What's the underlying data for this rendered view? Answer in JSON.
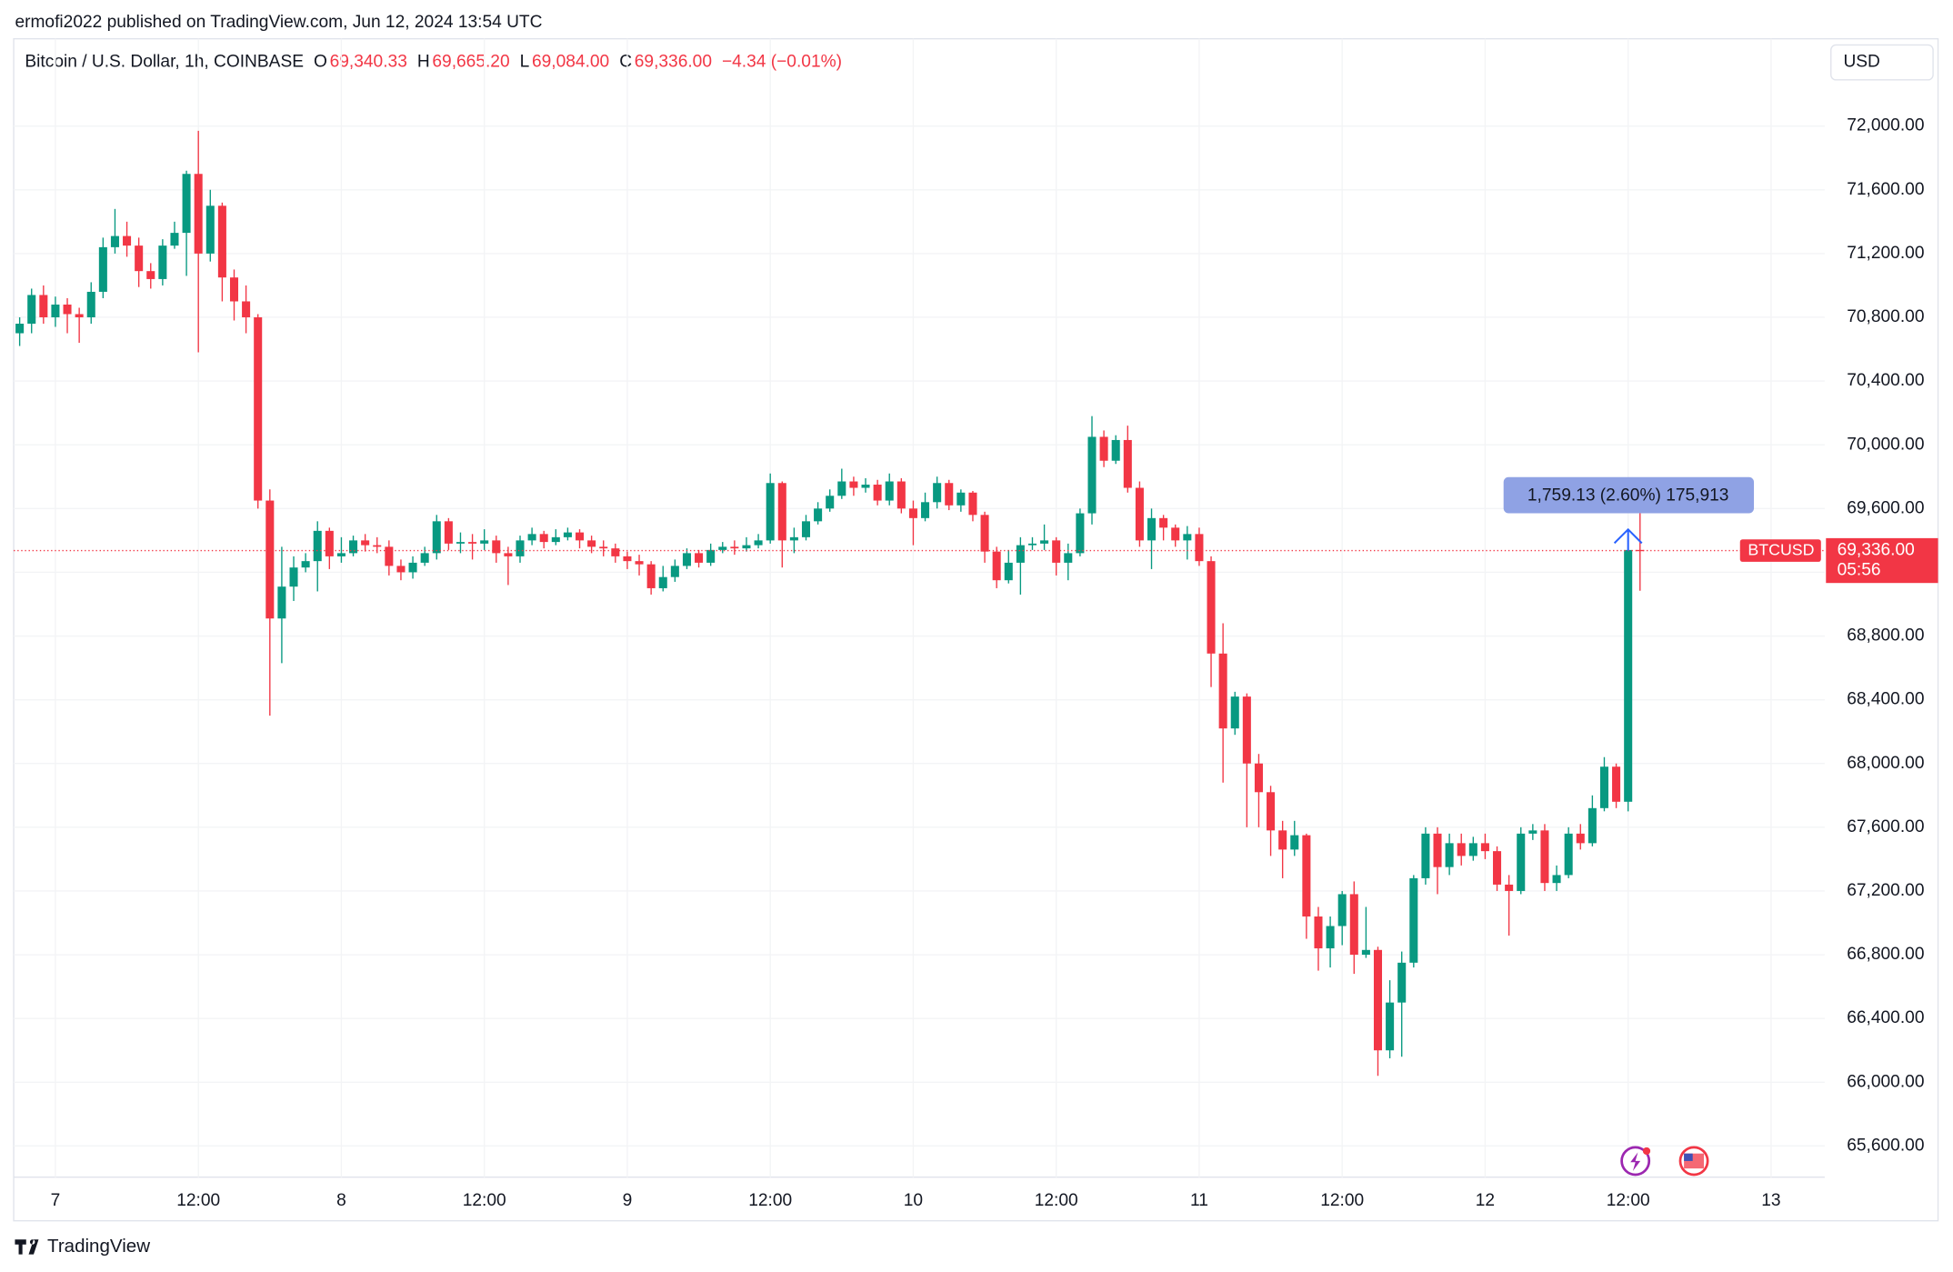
{
  "header": {
    "publisher": "ermofi2022 published on TradingView.com, Jun 12, 2024 13:54 UTC"
  },
  "chart_data": {
    "type": "candlestick",
    "title": "Bitcoin / U.S. Dollar, 1h, COINBASE",
    "ohlc_legend": [
      {
        "key": "O",
        "value": "69,340.33"
      },
      {
        "key": "H",
        "value": "69,665.20"
      },
      {
        "key": "L",
        "value": "69,084.00"
      },
      {
        "key": "C",
        "value": "69,336.00"
      }
    ],
    "change": "−4.34 (−0.01%)",
    "currency": "USD",
    "symbol_label": "BTCUSD",
    "last_price_label": "69,336.00",
    "countdown": "05:56",
    "measure_label": "1,759.13 (2.60%) 175,913",
    "categories": [
      null,
      null,
      null,
      "7",
      null,
      null,
      null,
      null,
      null,
      null,
      null,
      null,
      null,
      null,
      null,
      "12:00",
      null,
      null,
      null,
      null,
      null,
      null,
      null,
      null,
      null,
      null,
      null,
      "8",
      null,
      null,
      null,
      null,
      null,
      null,
      null,
      null,
      null,
      null,
      null,
      "12:00",
      null,
      null,
      null,
      null,
      null,
      null,
      null,
      null,
      null,
      null,
      null,
      "9",
      null,
      null,
      null,
      null,
      null,
      null,
      null,
      null,
      null,
      null,
      null,
      "12:00",
      null,
      null,
      null,
      null,
      null,
      null,
      null,
      null,
      null,
      null,
      null,
      "10",
      null,
      null,
      null,
      null,
      null,
      null,
      null,
      null,
      null,
      null,
      null,
      "12:00",
      null,
      null,
      null,
      null,
      null,
      null,
      null,
      null,
      null,
      null,
      null,
      "11",
      null,
      null,
      null,
      null,
      null,
      null,
      null,
      null,
      null,
      null,
      null,
      "12:00",
      null,
      null,
      null,
      null,
      null,
      null,
      null,
      null,
      null,
      null,
      null,
      "12",
      null,
      null,
      null,
      null,
      null,
      null,
      null,
      null,
      null,
      null,
      null,
      "12:00",
      null,
      null,
      null,
      null,
      null,
      null,
      null,
      null,
      null,
      null,
      null,
      "13",
      null,
      null,
      null,
      null
    ],
    "open": [
      70700,
      70760,
      70940,
      70800,
      70880,
      70820,
      70800,
      70960,
      71240,
      71310,
      71250,
      71090,
      71040,
      71250,
      71330,
      71700,
      71200,
      71500,
      71050,
      70900,
      70800,
      69650,
      68910,
      69110,
      69230,
      69270,
      69460,
      69300,
      69320,
      69400,
      69370,
      69360,
      69240,
      69200,
      69260,
      69320,
      69520,
      69380,
      69390,
      69380,
      69400,
      69320,
      69300,
      69400,
      69440,
      69390,
      69420,
      69450,
      69400,
      69360,
      69350,
      69300,
      69270,
      69250,
      69100,
      69170,
      69240,
      69320,
      69260,
      69340,
      69360,
      69350,
      69370,
      69400,
      69760,
      69400,
      69420,
      69520,
      69600,
      69680,
      69770,
      69730,
      69750,
      69650,
      69770,
      69600,
      69540,
      69640,
      69760,
      69620,
      69700,
      69560,
      69330,
      69150,
      69260,
      69370,
      69380,
      69400,
      69260,
      69320,
      69570,
      70050,
      69900,
      70030,
      69730,
      69400,
      69540,
      69480,
      69400,
      69440,
      69270,
      68690,
      68220,
      68420,
      68000,
      67820,
      67580,
      67460,
      67550,
      67040,
      66840,
      66980,
      67180,
      66800,
      66830,
      66200,
      66500,
      66750,
      67280,
      67560,
      67350,
      67500,
      67420,
      67500,
      67450,
      67240,
      67200,
      67560,
      67580,
      67250,
      67300,
      67560,
      67500,
      67720,
      67980,
      67760,
      69340.33,
      null,
      null,
      null,
      null,
      null,
      null,
      null,
      null,
      null,
      null,
      null,
      null,
      null,
      null,
      null
    ],
    "high": [
      70800,
      70980,
      71000,
      70930,
      70920,
      70860,
      71020,
      71300,
      71480,
      71400,
      71300,
      71140,
      71290,
      71400,
      71720,
      71970,
      71600,
      71520,
      71100,
      71000,
      70820,
      69720,
      69360,
      69300,
      69320,
      69520,
      69480,
      69420,
      69430,
      69440,
      69420,
      69400,
      69280,
      69300,
      69360,
      69560,
      69540,
      69450,
      69440,
      69470,
      69430,
      69360,
      69430,
      69480,
      69460,
      69470,
      69480,
      69470,
      69430,
      69400,
      69380,
      69330,
      69310,
      69270,
      69240,
      69280,
      69350,
      69340,
      69380,
      69390,
      69400,
      69420,
      69440,
      69820,
      69770,
      69480,
      69560,
      69640,
      69720,
      69850,
      69800,
      69790,
      69780,
      69820,
      69790,
      69650,
      69700,
      69800,
      69780,
      69720,
      69710,
      69580,
      69360,
      69340,
      69420,
      69420,
      69500,
      69420,
      69380,
      69600,
      70180,
      70090,
      70060,
      70120,
      69770,
      69600,
      69560,
      69500,
      69490,
      69480,
      69300,
      68880,
      68450,
      68440,
      68060,
      67860,
      67640,
      67640,
      67560,
      67100,
      67040,
      67200,
      67260,
      67100,
      66850,
      66640,
      66820,
      67300,
      67600,
      67600,
      67560,
      67560,
      67540,
      67560,
      67480,
      67300,
      67600,
      67620,
      67620,
      67360,
      67600,
      67620,
      67800,
      68040,
      68000,
      69340,
      69665.2,
      null,
      null,
      null,
      null,
      null,
      null,
      null,
      null,
      null,
      null,
      null,
      null,
      null,
      null,
      null
    ],
    "low": [
      70620,
      70700,
      70760,
      70740,
      70700,
      70640,
      70760,
      70920,
      71200,
      71180,
      70990,
      70980,
      71000,
      71230,
      71060,
      70580,
      71150,
      70900,
      70780,
      70700,
      69600,
      68300,
      68630,
      69020,
      69200,
      69080,
      69220,
      69260,
      69300,
      69330,
      69320,
      69180,
      69150,
      69160,
      69240,
      69280,
      69340,
      69320,
      69280,
      69340,
      69260,
      69120,
      69260,
      69370,
      69350,
      69370,
      69400,
      69350,
      69320,
      69300,
      69260,
      69220,
      69180,
      69060,
      69080,
      69140,
      69220,
      69230,
      69240,
      69320,
      69310,
      69330,
      69350,
      69380,
      69230,
      69320,
      69400,
      69500,
      69580,
      69660,
      69680,
      69700,
      69620,
      69620,
      69570,
      69370,
      69520,
      69600,
      69590,
      69580,
      69520,
      69260,
      69100,
      69130,
      69060,
      69340,
      69340,
      69180,
      69150,
      69300,
      69500,
      69860,
      69880,
      69700,
      69360,
      69220,
      69400,
      69360,
      69280,
      69240,
      68480,
      67880,
      68180,
      67600,
      67600,
      67420,
      67280,
      67420,
      66900,
      66700,
      66720,
      66860,
      66680,
      66780,
      66040,
      66150,
      66160,
      66720,
      67240,
      67180,
      67300,
      67360,
      67390,
      67400,
      67200,
      66920,
      67180,
      67520,
      67200,
      67200,
      67280,
      67460,
      67480,
      67700,
      67720,
      67700,
      69084,
      null,
      null,
      null,
      null,
      null,
      null,
      null,
      null,
      null,
      null,
      null,
      null,
      null,
      null,
      null
    ],
    "close": [
      70760,
      70940,
      70800,
      70880,
      70820,
      70800,
      70960,
      71240,
      71310,
      71250,
      71090,
      71040,
      71250,
      71330,
      71700,
      71200,
      71500,
      71050,
      70900,
      70800,
      69650,
      68910,
      69110,
      69230,
      69270,
      69460,
      69300,
      69320,
      69400,
      69370,
      69360,
      69240,
      69200,
      69260,
      69320,
      69520,
      69380,
      69390,
      69380,
      69400,
      69320,
      69300,
      69400,
      69440,
      69390,
      69420,
      69450,
      69400,
      69360,
      69350,
      69300,
      69270,
      69250,
      69100,
      69170,
      69240,
      69320,
      69260,
      69340,
      69360,
      69350,
      69370,
      69400,
      69760,
      69400,
      69420,
      69520,
      69600,
      69680,
      69770,
      69730,
      69750,
      69650,
      69770,
      69600,
      69540,
      69640,
      69760,
      69620,
      69700,
      69560,
      69330,
      69150,
      69260,
      69370,
      69380,
      69400,
      69260,
      69320,
      69570,
      70050,
      69900,
      70030,
      69730,
      69400,
      69540,
      69480,
      69400,
      69440,
      69270,
      68690,
      68220,
      68420,
      68000,
      67820,
      67580,
      67460,
      67550,
      67040,
      66840,
      66980,
      67180,
      66800,
      66830,
      66200,
      66500,
      66750,
      67280,
      67560,
      67350,
      67500,
      67420,
      67500,
      67450,
      67240,
      67200,
      67560,
      67580,
      67250,
      67300,
      67560,
      67500,
      67720,
      67980,
      67760,
      69340,
      69336,
      null,
      null,
      null,
      null,
      null,
      null,
      null,
      null,
      null,
      null,
      null,
      null,
      null,
      null,
      null
    ],
    "up_color": "#089981",
    "down_color": "#f23645",
    "ylim": [
      65404,
      72548
    ],
    "yticks": [
      {
        "value": 65600,
        "label": "65,600.00"
      },
      {
        "value": 66000,
        "label": "66,000.00"
      },
      {
        "value": 66400,
        "label": "66,400.00"
      },
      {
        "value": 66800,
        "label": "66,800.00"
      },
      {
        "value": 67200,
        "label": "67,200.00"
      },
      {
        "value": 67600,
        "label": "67,600.00"
      },
      {
        "value": 68000,
        "label": "68,000.00"
      },
      {
        "value": 68400,
        "label": "68,400.00"
      },
      {
        "value": 68800,
        "label": "68,800.00"
      },
      {
        "value": 69200,
        "label": "69,200.00"
      },
      {
        "value": 69600,
        "label": "69,600.00"
      },
      {
        "value": 70000,
        "label": "70,000.00"
      },
      {
        "value": 70400,
        "label": "70,400.00"
      },
      {
        "value": 70800,
        "label": "70,800.00"
      },
      {
        "value": 71200,
        "label": "71,200.00"
      },
      {
        "value": 71600,
        "label": "71,600.00"
      },
      {
        "value": 72000,
        "label": "72,000.00"
      }
    ],
    "grid": true
  },
  "footer": {
    "brand": "TradingView"
  }
}
